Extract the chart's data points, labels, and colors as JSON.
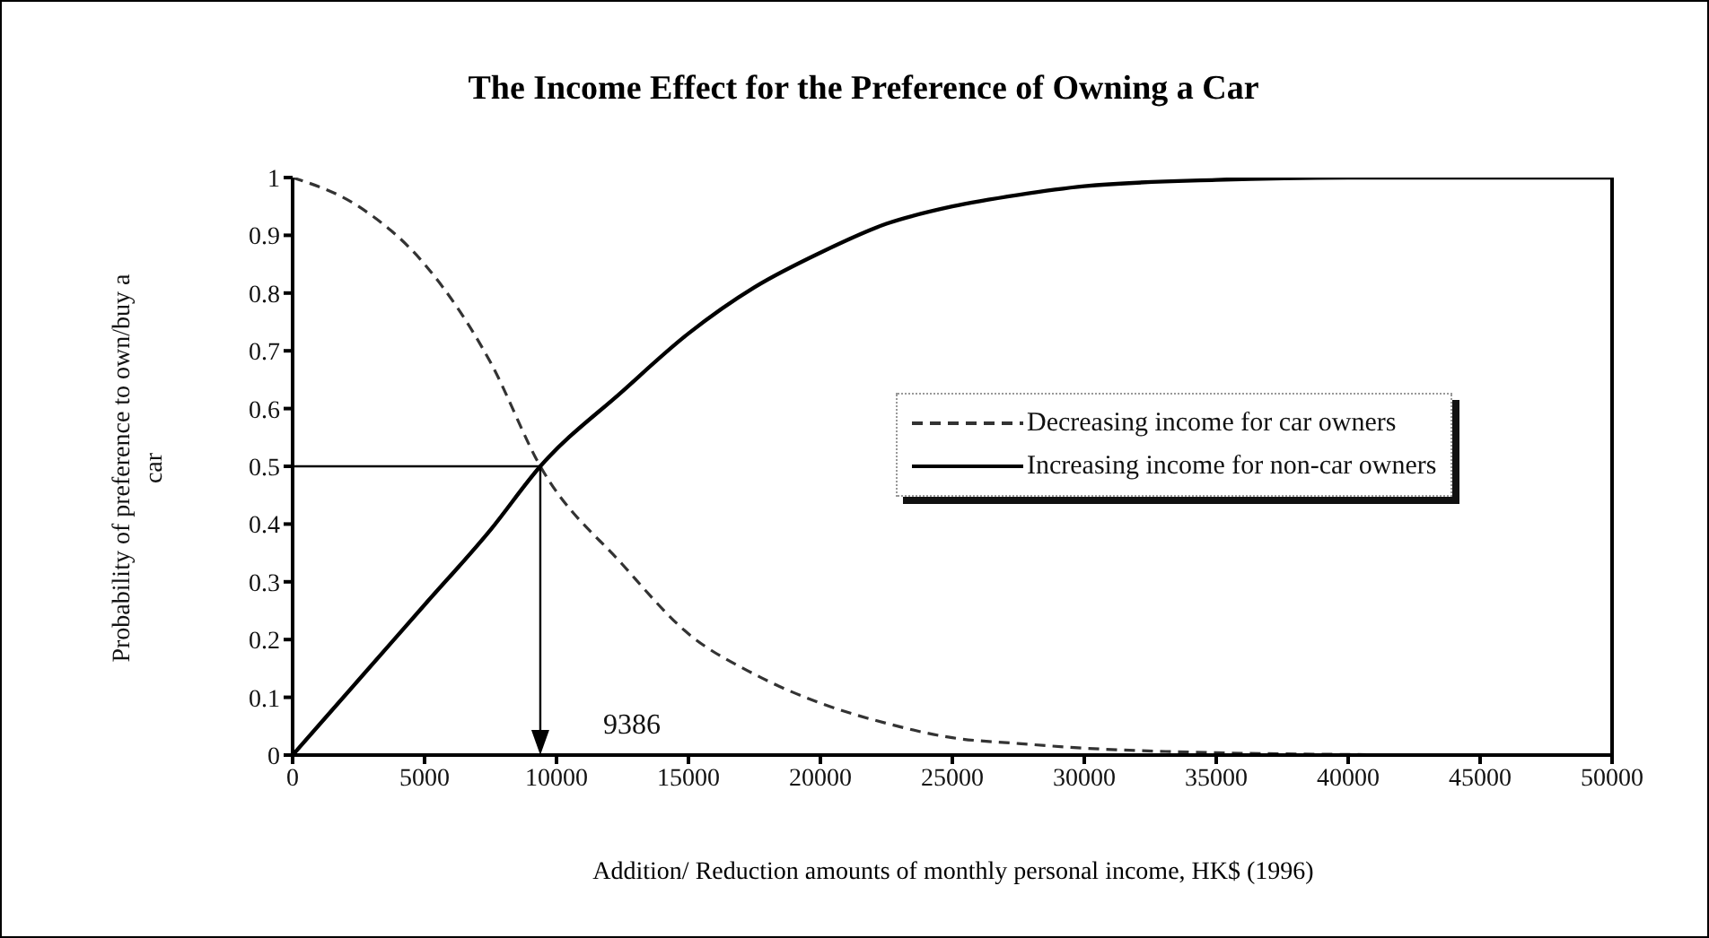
{
  "chart_data": {
    "type": "line",
    "title": "The Income Effect for the Preference of Owning a Car",
    "xlabel": "Addition/ Reduction amounts of monthly personal income, HK$ (1996)",
    "ylabel": "Probability of preference to own/buy a car",
    "xlim": [
      0,
      50000
    ],
    "xticks": [
      0,
      5000,
      10000,
      15000,
      20000,
      25000,
      30000,
      35000,
      40000,
      45000,
      50000
    ],
    "ylim": [
      0,
      1
    ],
    "yticks": [
      0,
      0.1,
      0.2,
      0.3,
      0.4,
      0.5,
      0.6,
      0.7,
      0.8,
      0.9,
      1
    ],
    "grid": false,
    "legend": "right",
    "marker": "none",
    "ref_lines": [
      {
        "axis": "y",
        "value": 0.5
      },
      {
        "axis": "x",
        "value": 9386,
        "label": "9386"
      }
    ],
    "series": [
      {
        "name": "Decreasing income for car owners",
        "color": "#333333",
        "line_style": "dashed",
        "x": [
          0,
          2500,
          5000,
          7500,
          9386,
          12500,
          15000,
          17500,
          20000,
          22500,
          25000,
          27500,
          30000,
          35000,
          40000,
          45000,
          50000
        ],
        "values": [
          1,
          0.95,
          0.85,
          0.68,
          0.5,
          0.33,
          0.21,
          0.14,
          0.09,
          0.055,
          0.03,
          0.02,
          0.012,
          0.004,
          0.001,
          0,
          0
        ]
      },
      {
        "name": "Increasing income for non-car owners",
        "color": "#000000",
        "line_style": "solid",
        "x": [
          0,
          2500,
          5000,
          7500,
          9386,
          12500,
          15000,
          17500,
          20000,
          22500,
          25000,
          27500,
          30000,
          35000,
          40000,
          45000,
          50000
        ],
        "values": [
          0,
          0.13,
          0.26,
          0.39,
          0.5,
          0.63,
          0.73,
          0.81,
          0.87,
          0.92,
          0.95,
          0.97,
          0.985,
          0.996,
          1,
          1,
          1
        ]
      }
    ]
  }
}
